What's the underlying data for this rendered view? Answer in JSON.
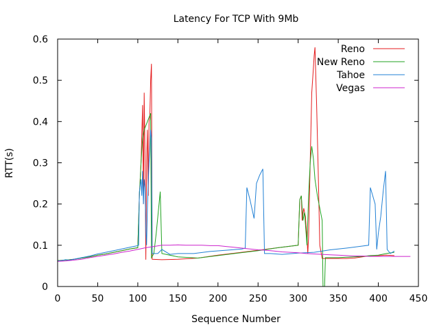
{
  "chart_data": {
    "type": "line",
    "title": "Latency For TCP With 9Mb",
    "xlabel": "Sequence Number",
    "ylabel": "RTT(s)",
    "xlim": [
      0,
      450
    ],
    "ylim": [
      0,
      0.6
    ],
    "xticks": [
      0,
      50,
      100,
      150,
      200,
      250,
      300,
      350,
      400,
      450
    ],
    "yticks": [
      0,
      0.1,
      0.2,
      0.3,
      0.4,
      0.5,
      0.6
    ],
    "grid": false,
    "legend_position": "top-right",
    "series": [
      {
        "name": "Reno",
        "color": "#e41a1c",
        "points": [
          [
            0,
            0.063
          ],
          [
            10,
            0.064
          ],
          [
            20,
            0.066
          ],
          [
            30,
            0.069
          ],
          [
            40,
            0.072
          ],
          [
            50,
            0.076
          ],
          [
            60,
            0.079
          ],
          [
            70,
            0.083
          ],
          [
            80,
            0.087
          ],
          [
            90,
            0.091
          ],
          [
            100,
            0.094
          ],
          [
            102,
            0.22
          ],
          [
            104,
            0.3
          ],
          [
            106,
            0.44
          ],
          [
            107,
            0.2
          ],
          [
            108,
            0.47
          ],
          [
            109,
            0.32
          ],
          [
            110,
            0.065
          ],
          [
            111,
            0.3
          ],
          [
            112,
            0.38
          ],
          [
            113,
            0.22
          ],
          [
            114,
            0.4
          ],
          [
            115,
            0.41
          ],
          [
            116,
            0.5
          ],
          [
            117,
            0.54
          ],
          [
            118,
            0.066
          ],
          [
            130,
            0.065
          ],
          [
            150,
            0.066
          ],
          [
            175,
            0.069
          ],
          [
            200,
            0.076
          ],
          [
            225,
            0.082
          ],
          [
            250,
            0.088
          ],
          [
            275,
            0.094
          ],
          [
            300,
            0.1
          ],
          [
            302,
            0.21
          ],
          [
            304,
            0.22
          ],
          [
            305,
            0.16
          ],
          [
            307,
            0.19
          ],
          [
            309,
            0.17
          ],
          [
            311,
            0.12
          ],
          [
            312,
            0.08
          ],
          [
            313,
            0.12
          ],
          [
            315,
            0.3
          ],
          [
            317,
            0.47
          ],
          [
            319,
            0.53
          ],
          [
            320,
            0.56
          ],
          [
            321,
            0.58
          ],
          [
            323,
            0.44
          ],
          [
            325,
            0.28
          ],
          [
            327,
            0.1
          ],
          [
            330,
            0.068
          ],
          [
            340,
            0.068
          ],
          [
            350,
            0.068
          ],
          [
            360,
            0.068
          ],
          [
            370,
            0.069
          ],
          [
            380,
            0.072
          ],
          [
            390,
            0.075
          ],
          [
            400,
            0.075
          ],
          [
            410,
            0.076
          ],
          [
            420,
            0.075
          ]
        ]
      },
      {
        "name": "New Reno",
        "color": "#1fa21f",
        "points": [
          [
            0,
            0.063
          ],
          [
            10,
            0.064
          ],
          [
            20,
            0.066
          ],
          [
            30,
            0.069
          ],
          [
            40,
            0.072
          ],
          [
            50,
            0.076
          ],
          [
            60,
            0.079
          ],
          [
            70,
            0.083
          ],
          [
            80,
            0.087
          ],
          [
            90,
            0.091
          ],
          [
            100,
            0.094
          ],
          [
            102,
            0.22
          ],
          [
            104,
            0.3
          ],
          [
            106,
            0.36
          ],
          [
            108,
            0.38
          ],
          [
            110,
            0.39
          ],
          [
            114,
            0.41
          ],
          [
            116,
            0.42
          ],
          [
            117,
            0.07
          ],
          [
            120,
            0.08
          ],
          [
            123,
            0.13
          ],
          [
            128,
            0.23
          ],
          [
            130,
            0.08
          ],
          [
            150,
            0.072
          ],
          [
            175,
            0.069
          ],
          [
            200,
            0.075
          ],
          [
            225,
            0.081
          ],
          [
            250,
            0.087
          ],
          [
            275,
            0.094
          ],
          [
            300,
            0.1
          ],
          [
            302,
            0.21
          ],
          [
            304,
            0.22
          ],
          [
            306,
            0.16
          ],
          [
            308,
            0.18
          ],
          [
            311,
            0.1
          ],
          [
            313,
            0.22
          ],
          [
            315,
            0.3
          ],
          [
            317,
            0.34
          ],
          [
            319,
            0.31
          ],
          [
            321,
            0.26
          ],
          [
            324,
            0.22
          ],
          [
            327,
            0.19
          ],
          [
            330,
            0.16
          ],
          [
            331,
            0.0
          ],
          [
            333,
            0.0
          ],
          [
            334,
            0.07
          ],
          [
            340,
            0.07
          ],
          [
            350,
            0.07
          ],
          [
            360,
            0.071
          ],
          [
            370,
            0.072
          ],
          [
            380,
            0.073
          ],
          [
            390,
            0.075
          ],
          [
            400,
            0.076
          ],
          [
            410,
            0.08
          ],
          [
            420,
            0.083
          ]
        ]
      },
      {
        "name": "Tahoe",
        "color": "#1f7fd4",
        "points": [
          [
            0,
            0.062
          ],
          [
            5,
            0.063
          ],
          [
            10,
            0.065
          ],
          [
            15,
            0.064
          ],
          [
            20,
            0.066
          ],
          [
            30,
            0.07
          ],
          [
            40,
            0.074
          ],
          [
            50,
            0.079
          ],
          [
            60,
            0.083
          ],
          [
            70,
            0.087
          ],
          [
            80,
            0.091
          ],
          [
            90,
            0.095
          ],
          [
            100,
            0.099
          ],
          [
            101,
            0.1
          ],
          [
            102,
            0.23
          ],
          [
            104,
            0.26
          ],
          [
            105,
            0.22
          ],
          [
            106,
            0.28
          ],
          [
            107,
            0.2
          ],
          [
            108,
            0.26
          ],
          [
            109,
            0.24
          ],
          [
            110,
            0.14
          ],
          [
            111,
            0.1
          ],
          [
            112,
            0.19
          ],
          [
            113,
            0.25
          ],
          [
            114,
            0.3
          ],
          [
            115,
            0.33
          ],
          [
            116,
            0.38
          ],
          [
            117,
            0.36
          ],
          [
            118,
            0.08
          ],
          [
            125,
            0.08
          ],
          [
            130,
            0.09
          ],
          [
            140,
            0.078
          ],
          [
            150,
            0.08
          ],
          [
            170,
            0.08
          ],
          [
            190,
            0.085
          ],
          [
            210,
            0.088
          ],
          [
            230,
            0.091
          ],
          [
            234,
            0.093
          ],
          [
            236,
            0.24
          ],
          [
            240,
            0.21
          ],
          [
            245,
            0.165
          ],
          [
            248,
            0.25
          ],
          [
            252,
            0.27
          ],
          [
            256,
            0.285
          ],
          [
            258,
            0.08
          ],
          [
            265,
            0.08
          ],
          [
            280,
            0.078
          ],
          [
            300,
            0.081
          ],
          [
            320,
            0.083
          ],
          [
            340,
            0.089
          ],
          [
            360,
            0.093
          ],
          [
            380,
            0.098
          ],
          [
            388,
            0.1
          ],
          [
            390,
            0.24
          ],
          [
            393,
            0.22
          ],
          [
            396,
            0.2
          ],
          [
            398,
            0.09
          ],
          [
            400,
            0.13
          ],
          [
            403,
            0.17
          ],
          [
            406,
            0.23
          ],
          [
            409,
            0.28
          ],
          [
            411,
            0.09
          ],
          [
            415,
            0.08
          ],
          [
            420,
            0.086
          ]
        ]
      },
      {
        "name": "Vegas",
        "color": "#cc21cc",
        "points": [
          [
            0,
            0.061
          ],
          [
            10,
            0.062
          ],
          [
            20,
            0.064
          ],
          [
            30,
            0.066
          ],
          [
            40,
            0.07
          ],
          [
            50,
            0.073
          ],
          [
            60,
            0.076
          ],
          [
            70,
            0.079
          ],
          [
            80,
            0.083
          ],
          [
            90,
            0.086
          ],
          [
            100,
            0.09
          ],
          [
            110,
            0.094
          ],
          [
            120,
            0.097
          ],
          [
            130,
            0.1
          ],
          [
            140,
            0.1
          ],
          [
            150,
            0.101
          ],
          [
            160,
            0.1
          ],
          [
            170,
            0.1
          ],
          [
            180,
            0.1
          ],
          [
            190,
            0.099
          ],
          [
            200,
            0.099
          ],
          [
            210,
            0.097
          ],
          [
            220,
            0.095
          ],
          [
            230,
            0.093
          ],
          [
            240,
            0.091
          ],
          [
            250,
            0.089
          ],
          [
            260,
            0.088
          ],
          [
            270,
            0.086
          ],
          [
            280,
            0.084
          ],
          [
            290,
            0.083
          ],
          [
            300,
            0.082
          ],
          [
            310,
            0.08
          ],
          [
            320,
            0.079
          ],
          [
            330,
            0.078
          ],
          [
            340,
            0.077
          ],
          [
            350,
            0.076
          ],
          [
            360,
            0.075
          ],
          [
            370,
            0.074
          ],
          [
            380,
            0.074
          ],
          [
            390,
            0.073
          ],
          [
            400,
            0.073
          ],
          [
            410,
            0.073
          ],
          [
            420,
            0.073
          ],
          [
            430,
            0.073
          ],
          [
            440,
            0.073
          ]
        ]
      }
    ]
  }
}
